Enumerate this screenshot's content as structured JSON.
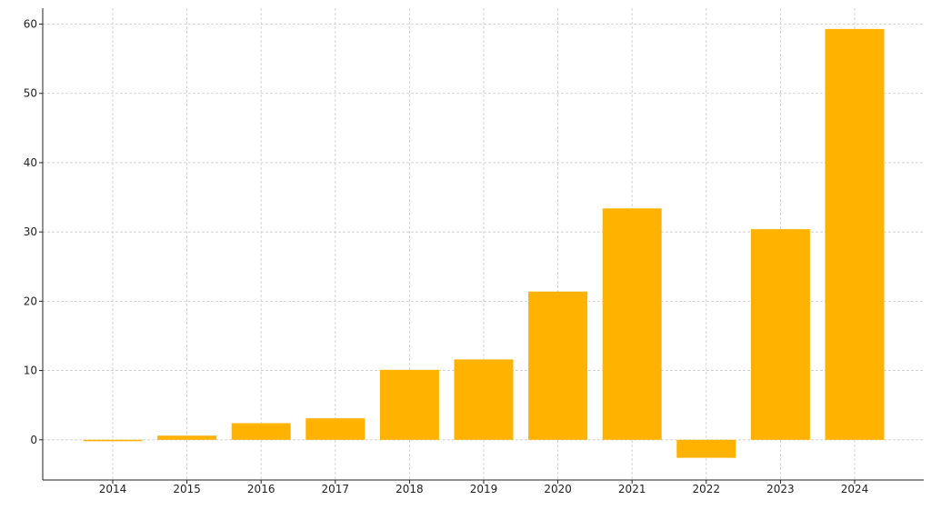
{
  "chart_data": {
    "type": "bar",
    "categories": [
      "2014",
      "2015",
      "2016",
      "2017",
      "2018",
      "2019",
      "2020",
      "2021",
      "2022",
      "2023",
      "2024"
    ],
    "values": [
      -0.2,
      0.6,
      2.4,
      3.1,
      10.1,
      11.6,
      21.4,
      33.4,
      -2.6,
      30.4,
      59.3
    ],
    "xlabel": "",
    "ylabel": "",
    "ylim": [
      -5.8,
      62.3
    ],
    "yticks": [
      0,
      10,
      20,
      30,
      40,
      50,
      60
    ],
    "grid": true,
    "bar_color": "#FFB300"
  }
}
